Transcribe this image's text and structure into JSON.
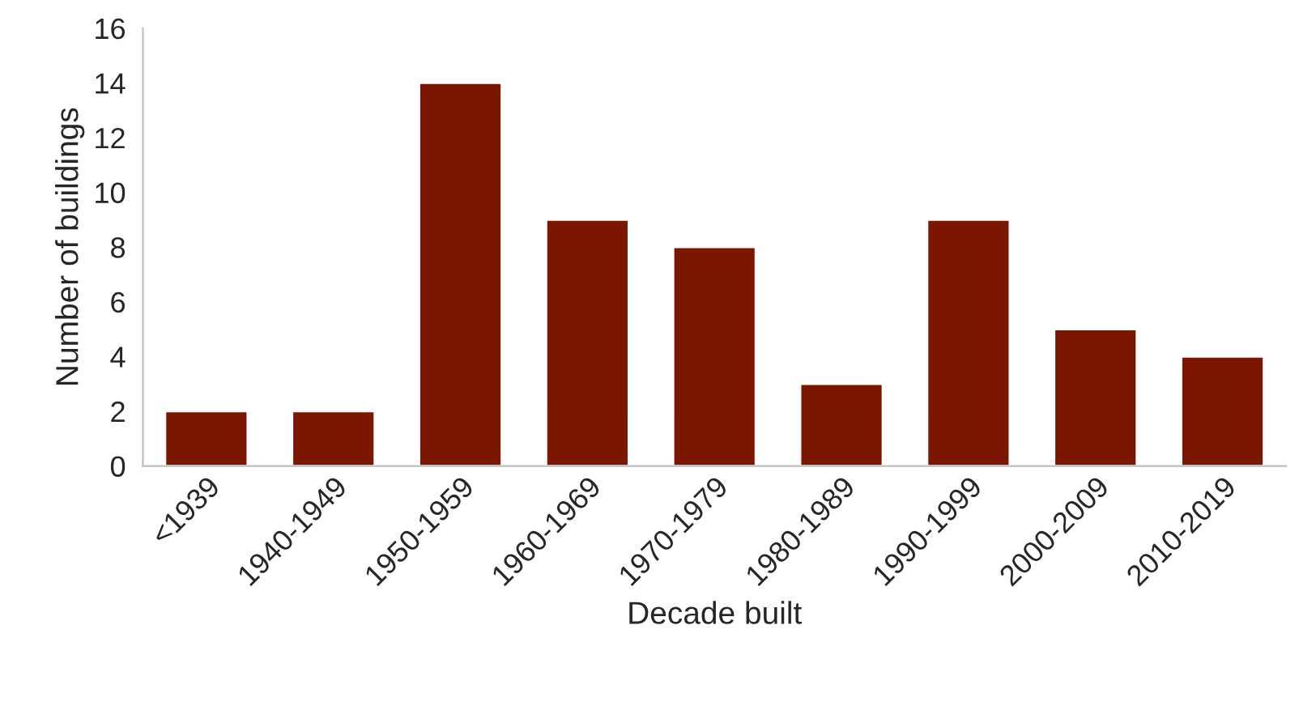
{
  "chart_data": {
    "type": "bar",
    "xlabel": "Decade built",
    "ylabel": "Number of buildings",
    "categories": [
      "<1939",
      "1940-1949",
      "1950-1959",
      "1960-1969",
      "1970-1979",
      "1980-1989",
      "1990-1999",
      "2000-2009",
      "2010-2019"
    ],
    "values": [
      2,
      2,
      14,
      9,
      8,
      3,
      9,
      5,
      4
    ],
    "color": "#7b1600",
    "ylim": [
      0,
      16
    ],
    "yticks": [
      0,
      2,
      4,
      6,
      8,
      10,
      12,
      14,
      16
    ],
    "grid": false,
    "legend": false
  }
}
